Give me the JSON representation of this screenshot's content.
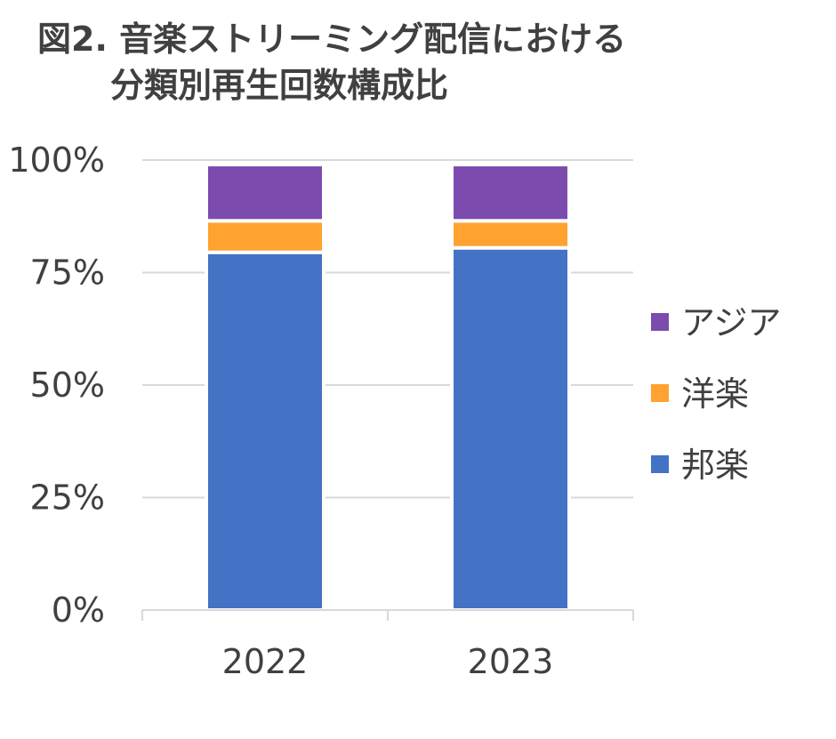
{
  "chart_data": {
    "type": "bar",
    "stacked": true,
    "title_line1": "図2. 音楽ストリーミング配信における",
    "title_line2": "分類別再生回数構成比",
    "categories": [
      "2022",
      "2023"
    ],
    "series": [
      {
        "name": "邦楽",
        "color": "#4472C4",
        "values": [
          79.5,
          80.5
        ]
      },
      {
        "name": "洋楽",
        "color": "#FFA22F",
        "values": [
          7.0,
          6.0
        ]
      },
      {
        "name": "アジア",
        "color": "#7C4BAE",
        "values": [
          12.5,
          12.5
        ]
      }
    ],
    "ylim": [
      0,
      100
    ],
    "yticks": [
      0,
      25,
      50,
      75,
      100
    ],
    "ytick_labels": [
      "0%",
      "25%",
      "50%",
      "75%",
      "100%"
    ],
    "xlabel": "",
    "ylabel": "",
    "grid": true,
    "legend_position": "right",
    "legend_order": [
      "アジア",
      "洋楽",
      "邦楽"
    ]
  }
}
